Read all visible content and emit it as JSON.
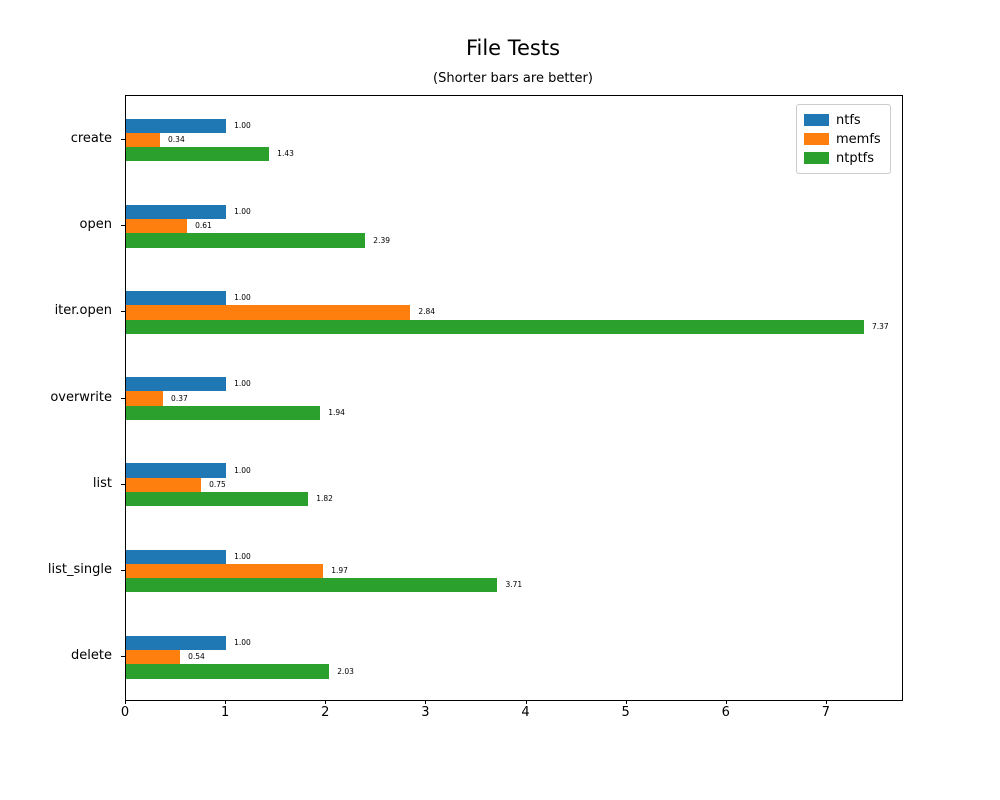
{
  "chart_data": {
    "type": "bar",
    "orientation": "horizontal",
    "title": "File Tests",
    "subtitle": "(Shorter bars are better)",
    "categories": [
      "create",
      "open",
      "iter.open",
      "overwrite",
      "list",
      "list_single",
      "delete"
    ],
    "series": [
      {
        "name": "ntfs",
        "color": "#1f77b4",
        "values": [
          1.0,
          1.0,
          1.0,
          1.0,
          1.0,
          1.0,
          1.0
        ]
      },
      {
        "name": "memfs",
        "color": "#ff7f0e",
        "values": [
          0.34,
          0.61,
          2.84,
          0.37,
          0.75,
          1.97,
          0.54
        ]
      },
      {
        "name": "ntptfs",
        "color": "#2ca02c",
        "values": [
          1.43,
          2.39,
          7.37,
          1.94,
          1.82,
          3.71,
          2.03
        ]
      }
    ],
    "value_label_decimals": 2,
    "xlim": [
      0,
      7.75
    ],
    "x_ticks": [
      0,
      1,
      2,
      3,
      4,
      5,
      6,
      7
    ],
    "grid": false,
    "legend_position": "upper right"
  },
  "colors": {
    "background": "#ffffff",
    "axis": "#000000",
    "text": "#000000",
    "legend_border": "#cccccc"
  }
}
